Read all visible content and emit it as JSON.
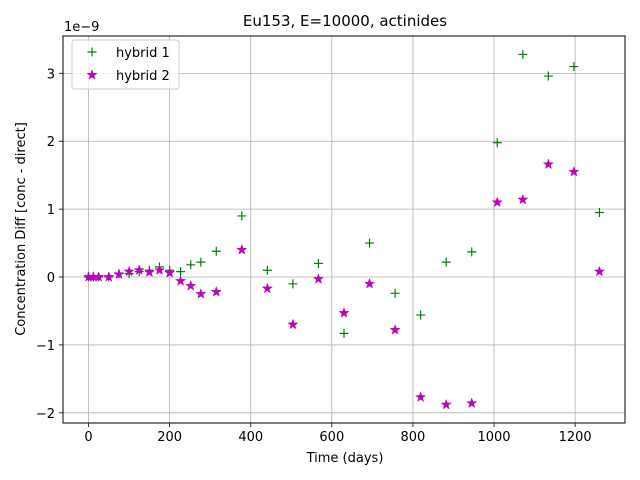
{
  "chart_data": {
    "type": "scatter",
    "title": "Eu153, E=10000, actinides",
    "xlabel": "Time (days)",
    "ylabel": "Concentration Diff [conc - direct]",
    "y_offset_label": "1e−9",
    "xlim": [
      -63,
      1323
    ],
    "ylim": [
      -2.15e-09,
      3.55e-09
    ],
    "x_ticks": [
      0,
      200,
      400,
      600,
      800,
      1000,
      1200
    ],
    "x_tick_labels": [
      "0",
      "200",
      "400",
      "600",
      "800",
      "1000",
      "1200"
    ],
    "y_ticks": [
      -2e-09,
      -1e-09,
      0,
      1e-09,
      2e-09,
      3e-09
    ],
    "y_tick_labels": [
      "−2",
      "−1",
      "0",
      "1",
      "2",
      "3"
    ],
    "grid": true,
    "legend_position": "top-left",
    "series": [
      {
        "name": "hybrid 1",
        "marker": "+",
        "color": "#008000",
        "x": [
          0,
          12,
          25,
          50,
          75,
          100,
          125,
          150,
          175,
          200,
          227,
          252,
          277,
          315,
          378,
          441,
          504,
          567,
          630,
          693,
          756,
          819,
          882,
          945,
          1008,
          1071,
          1134,
          1197,
          1260
        ],
        "y": [
          0,
          0,
          0,
          0,
          5e-11,
          5e-11,
          8e-11,
          1e-10,
          1.5e-10,
          1e-10,
          8e-11,
          1.8e-10,
          2.2e-10,
          3.8e-10,
          9e-10,
          1e-10,
          -1e-10,
          2e-10,
          -8.3e-10,
          5e-10,
          -2.4e-10,
          -5.6e-10,
          2.2e-10,
          3.7e-10,
          1.98e-09,
          3.28e-09,
          2.96e-09,
          3.1e-09,
          9.5e-10
        ]
      },
      {
        "name": "hybrid 2",
        "marker": "*",
        "color": "#bf00bf",
        "x": [
          0,
          12,
          25,
          50,
          75,
          100,
          125,
          150,
          175,
          200,
          227,
          252,
          277,
          315,
          378,
          441,
          504,
          567,
          630,
          693,
          756,
          819,
          882,
          945,
          1008,
          1071,
          1134,
          1197,
          1260
        ],
        "y": [
          0,
          0,
          0,
          0,
          4e-11,
          8e-11,
          1e-10,
          7e-11,
          1e-10,
          6e-11,
          -6e-11,
          -1.3e-10,
          -2.5e-10,
          -2.2e-10,
          4e-10,
          -1.7e-10,
          -7e-10,
          -3e-11,
          -5.3e-10,
          -1e-10,
          -7.8e-10,
          -1.77e-09,
          -1.88e-09,
          -1.86e-09,
          1.1e-09,
          1.14e-09,
          1.66e-09,
          1.55e-09,
          8e-11
        ]
      }
    ]
  }
}
